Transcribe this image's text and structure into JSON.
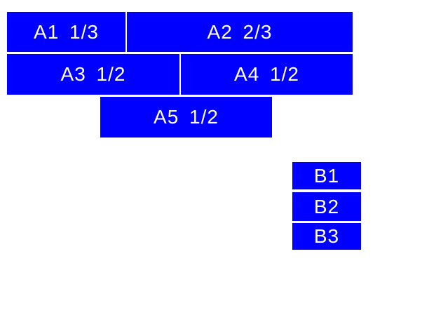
{
  "colors": {
    "box_fill": "#0000ff",
    "box_text": "#ffffff",
    "page_background": "#ffffff"
  },
  "group_a": {
    "a1": {
      "label": "A1 1/3"
    },
    "a2": {
      "label": "A2 2/3"
    },
    "a3": {
      "label": "A3 1/2"
    },
    "a4": {
      "label": "A4 1/2"
    },
    "a5": {
      "label": "A5 1/2"
    }
  },
  "group_b": {
    "b1": {
      "label": "B1"
    },
    "b2": {
      "label": "B2"
    },
    "b3": {
      "label": "B3"
    }
  }
}
